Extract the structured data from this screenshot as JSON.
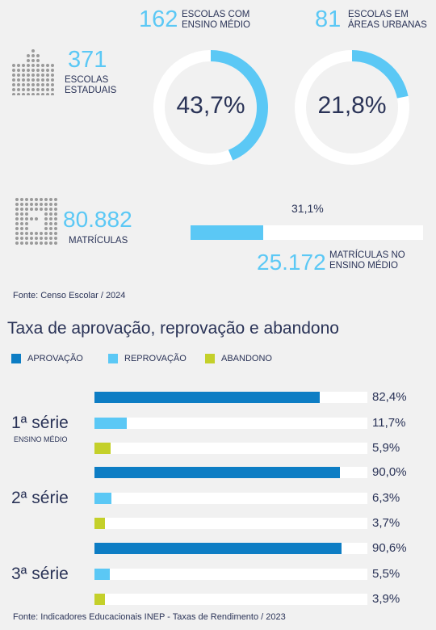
{
  "stats": {
    "schools_state": {
      "value": "371",
      "label_line1": "ESCOLAS",
      "label_line2": "ESTADUAIS"
    },
    "schools_high": {
      "value": "162",
      "label_line1": "ESCOLAS COM",
      "label_line2": "ENSINO MÉDIO",
      "percent_label": "43,7%",
      "percent": 43.7
    },
    "schools_urban": {
      "value": "81",
      "label_line1": "ESCOLAS EM",
      "label_line2": "ÁREAS URBANAS",
      "percent_label": "21,8%",
      "percent": 21.8
    },
    "enrollments": {
      "value": "80.882",
      "label": "MATRÍCULAS"
    },
    "enrollments_high": {
      "value": "25.172",
      "label_line1": "MATRÍCULAS NO",
      "label_line2": "ENSINO MÉDIO",
      "percent_label": "31,1%",
      "percent": 31.1
    }
  },
  "source_top": "Fonte: Censo Escolar / 2024",
  "colors": {
    "aprovacao": "#0d7dc4",
    "reprovacao": "#5bc8f5",
    "abandono": "#c4d02a",
    "ring_track": "#ffffff",
    "text": "#2a3357"
  },
  "icons": {
    "school": "school-dots-icon",
    "enrollment": "enrollment-dots-icon"
  },
  "chart_data": {
    "type": "bar",
    "orientation": "horizontal",
    "title": "Taxa de aprovação, reprovação e abandono",
    "legend": [
      "APROVAÇÃO",
      "REPROVAÇÃO",
      "ABANDONO"
    ],
    "xlim": [
      0,
      100
    ],
    "groups": [
      {
        "label": "1ª série",
        "sublabel": "ENSINO MÉDIO",
        "values": [
          82.4,
          11.7,
          5.9
        ],
        "labels": [
          "82,4%",
          "11,7%",
          "5,9%"
        ]
      },
      {
        "label": "2ª série",
        "sublabel": "",
        "values": [
          90.0,
          6.3,
          3.7
        ],
        "labels": [
          "90,0%",
          "6,3%",
          "3,7%"
        ]
      },
      {
        "label": "3ª série",
        "sublabel": "",
        "values": [
          90.6,
          5.5,
          3.9
        ],
        "labels": [
          "90,6%",
          "5,5%",
          "3,9%"
        ]
      }
    ],
    "source": "Fonte: Indicadores Educacionais INEP - Taxas de Rendimento / 2023"
  }
}
